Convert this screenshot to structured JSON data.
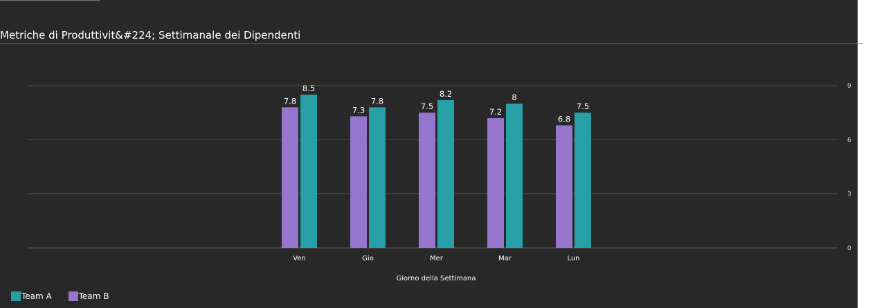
{
  "chart_data": {
    "type": "bar",
    "title": "Metriche di Produttivit&#224; Settimanale dei Dipendenti",
    "xlabel": "Giorno della Settimana",
    "ylabel": "",
    "categories": [
      "Ven",
      "Gio",
      "Mer",
      "Mar",
      "Lun"
    ],
    "series": [
      {
        "name": "Team B",
        "color": "#9575cd",
        "values": [
          7.8,
          7.3,
          7.5,
          7.2,
          6.8
        ]
      },
      {
        "name": "Team A",
        "color": "#26a0a6",
        "values": [
          8.5,
          7.8,
          8.2,
          8,
          7.5
        ]
      }
    ],
    "legend_order": [
      "Team A",
      "Team B"
    ],
    "ylim": [
      0,
      9
    ],
    "yticks": [
      0,
      3,
      6,
      9
    ],
    "y_axis_position": "right",
    "grid": true,
    "legend_position": "bottom-left"
  }
}
